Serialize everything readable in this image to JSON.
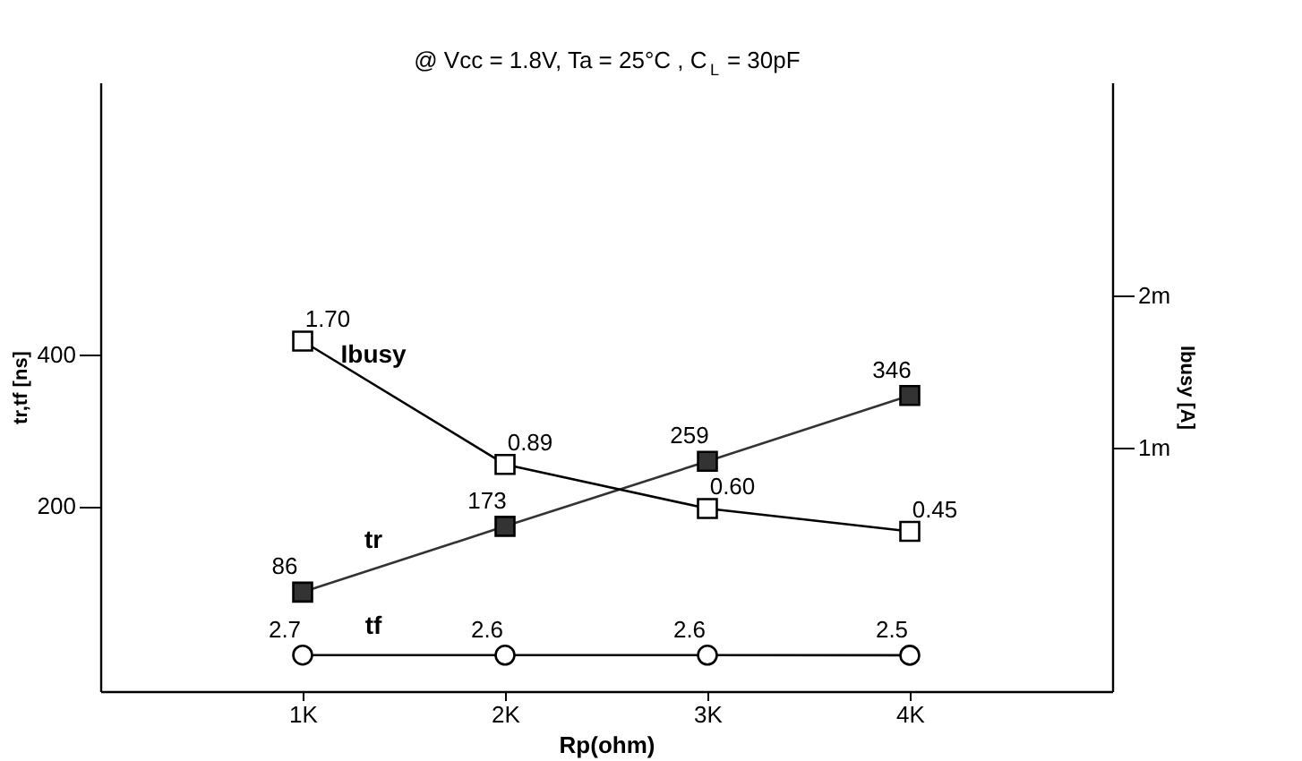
{
  "chart_data": {
    "type": "line",
    "title": "@ Vcc = 1.8V,  Ta = 25°C , C$_{L}$ = 30pF",
    "xlabel": "Rp(ohm)",
    "ylabel": "tr,tf [ns]",
    "y2label": "Ibusy [A]",
    "categories": [
      "1K",
      "2K",
      "3K",
      "4K"
    ],
    "ylim": [
      -45,
      760
    ],
    "yticks": [
      200,
      400
    ],
    "y2lim": [
      -0.6,
      3.4
    ],
    "y2ticks": [
      {
        "value": 1,
        "label": "1m"
      },
      {
        "value": 2,
        "label": "2m"
      }
    ],
    "grid": false,
    "legend": false,
    "series": [
      {
        "name": "Ibusy",
        "color": "#000000",
        "axis": "y2",
        "marker": "square",
        "values": [
          1.7,
          0.89,
          0.6,
          0.45
        ],
        "value_labels": [
          "1.70",
          "0.89",
          "0.60",
          "0.45"
        ]
      },
      {
        "name": "tr",
        "color": "#333333",
        "marker": "square",
        "values": [
          86,
          173,
          259,
          346
        ],
        "value_labels": [
          "86",
          "173",
          "259",
          "346"
        ]
      },
      {
        "name": "tf",
        "color": "#000000",
        "marker": "circle",
        "values": [
          2.7,
          2.6,
          2.6,
          2.5
        ],
        "value_labels": [
          "2.7",
          "2.6",
          "2.6",
          "2.5"
        ]
      }
    ]
  }
}
